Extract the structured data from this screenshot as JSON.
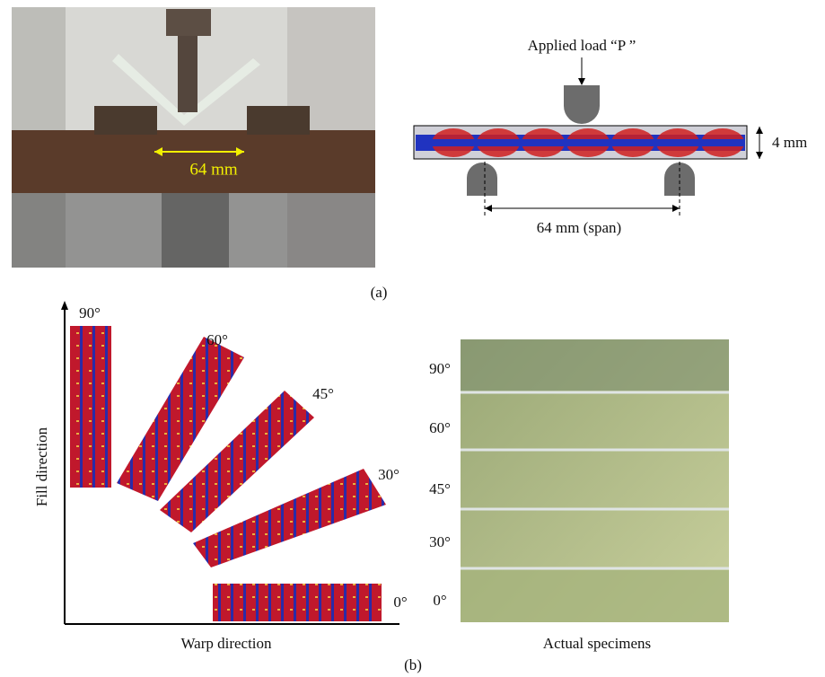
{
  "panel_a": {
    "photo_span_label": "64 mm",
    "load_label": "Applied load “P ”",
    "thickness_label": "4 mm",
    "span_label": "64 mm (span)",
    "caption": "(a)"
  },
  "panel_b": {
    "orientation_labels": [
      "90°",
      "60°",
      "45°",
      "30°",
      "0°"
    ],
    "y_axis_label": "Fill direction",
    "x_axis_label": "Warp direction",
    "specimen_labels": [
      "90°",
      "60°",
      "45°",
      "30°",
      "0°"
    ],
    "specimen_caption": "Actual specimens",
    "caption": "(b)"
  }
}
